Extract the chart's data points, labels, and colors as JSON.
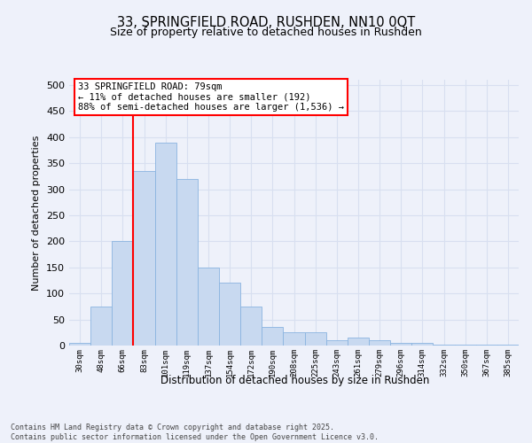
{
  "title1": "33, SPRINGFIELD ROAD, RUSHDEN, NN10 0QT",
  "title2": "Size of property relative to detached houses in Rushden",
  "xlabel": "Distribution of detached houses by size in Rushden",
  "ylabel": "Number of detached properties",
  "categories": [
    "30sqm",
    "48sqm",
    "66sqm",
    "83sqm",
    "101sqm",
    "119sqm",
    "137sqm",
    "154sqm",
    "172sqm",
    "190sqm",
    "208sqm",
    "225sqm",
    "243sqm",
    "261sqm",
    "279sqm",
    "296sqm",
    "314sqm",
    "332sqm",
    "350sqm",
    "367sqm",
    "385sqm"
  ],
  "values": [
    5,
    75,
    200,
    335,
    390,
    320,
    150,
    120,
    75,
    35,
    25,
    25,
    10,
    15,
    10,
    5,
    5,
    2,
    2,
    2,
    2
  ],
  "bar_color": "#c8d9f0",
  "bar_edge_color": "#8ab4e0",
  "red_line_x": 2.5,
  "annotation_text": "33 SPRINGFIELD ROAD: 79sqm\n← 11% of detached houses are smaller (192)\n88% of semi-detached houses are larger (1,536) →",
  "annotation_box_facecolor": "white",
  "annotation_box_edgecolor": "red",
  "ylim": [
    0,
    510
  ],
  "yticks": [
    0,
    50,
    100,
    150,
    200,
    250,
    300,
    350,
    400,
    450,
    500
  ],
  "footer_text": "Contains HM Land Registry data © Crown copyright and database right 2025.\nContains public sector information licensed under the Open Government Licence v3.0.",
  "background_color": "#eef1fa",
  "grid_color": "#d8dff0"
}
